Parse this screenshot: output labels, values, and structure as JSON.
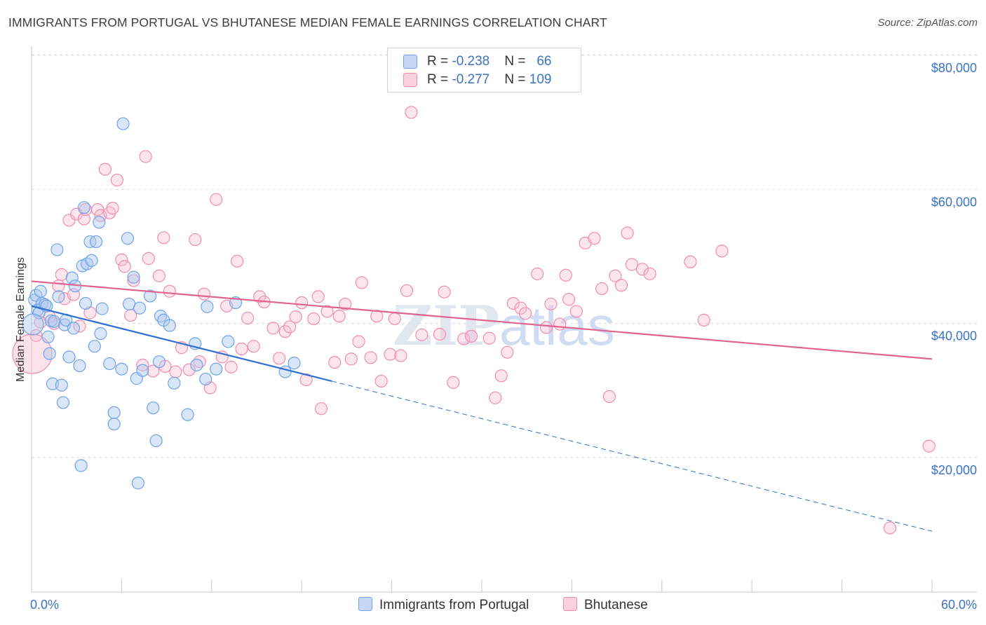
{
  "title": "IMMIGRANTS FROM PORTUGAL VS BHUTANESE MEDIAN FEMALE EARNINGS CORRELATION CHART",
  "source": "Source: ZipAtlas.com",
  "watermark": {
    "zip": "ZIP",
    "atlas": "atlas"
  },
  "legend": {
    "series1": {
      "r_label": "R = ",
      "r_value": "-0.238",
      "n_label": "N = ",
      "n_value": "66",
      "color": "#6fa3e8"
    },
    "series2": {
      "r_label": "R = ",
      "r_value": "-0.277",
      "n_label": "N = ",
      "n_value": "109",
      "color": "#f08cb0"
    }
  },
  "bottom_legend": {
    "series1": "Immigrants from Portugal",
    "series2": "Bhutanese"
  },
  "chart_data": {
    "type": "scatter",
    "xlabel": "",
    "ylabel": "Median Female Earnings",
    "xlim": [
      0,
      60
    ],
    "ylim": [
      0,
      84000
    ],
    "x_tick_labels": [
      "0.0%",
      "60.0%"
    ],
    "y_tick_labels": [
      "$20,000",
      "$40,000",
      "$60,000",
      "$80,000"
    ],
    "y_ticks": [
      20000,
      40000,
      60000,
      80000
    ],
    "grid": true,
    "series": [
      {
        "name": "Immigrants from Portugal",
        "color": "#6fa3e8",
        "trend": {
          "x_start": 0,
          "y_start": 42600,
          "x_solid_end": 20,
          "x_end": 60,
          "y_end": 9000
        },
        "points": [
          [
            0.2,
            43500
          ],
          [
            0.3,
            44200
          ],
          [
            0.4,
            42000
          ],
          [
            0.5,
            41600
          ],
          [
            0.6,
            44800
          ],
          [
            0.7,
            43000
          ],
          [
            0.9,
            42800
          ],
          [
            1.0,
            42600
          ],
          [
            1.1,
            38000
          ],
          [
            1.2,
            35500
          ],
          [
            1.3,
            40400
          ],
          [
            1.4,
            31000
          ],
          [
            1.5,
            40300
          ],
          [
            1.7,
            51000
          ],
          [
            1.8,
            44000
          ],
          [
            2.0,
            30800
          ],
          [
            2.1,
            28200
          ],
          [
            2.2,
            39800
          ],
          [
            2.3,
            40500
          ],
          [
            2.5,
            35000
          ],
          [
            2.7,
            46800
          ],
          [
            2.8,
            39300
          ],
          [
            2.9,
            45600
          ],
          [
            3.2,
            33700
          ],
          [
            3.3,
            18800
          ],
          [
            3.4,
            48600
          ],
          [
            3.5,
            57300
          ],
          [
            3.6,
            43000
          ],
          [
            3.7,
            48900
          ],
          [
            3.9,
            52200
          ],
          [
            4.0,
            49400
          ],
          [
            4.2,
            36600
          ],
          [
            4.3,
            52200
          ],
          [
            4.5,
            55100
          ],
          [
            4.6,
            38500
          ],
          [
            4.7,
            42200
          ],
          [
            5.2,
            34000
          ],
          [
            5.5,
            26700
          ],
          [
            5.5,
            25000
          ],
          [
            6.0,
            33200
          ],
          [
            6.1,
            69800
          ],
          [
            6.4,
            52700
          ],
          [
            6.5,
            42900
          ],
          [
            6.8,
            46900
          ],
          [
            7.0,
            31800
          ],
          [
            7.1,
            16200
          ],
          [
            7.2,
            42300
          ],
          [
            7.4,
            33000
          ],
          [
            7.9,
            44100
          ],
          [
            8.1,
            27400
          ],
          [
            8.3,
            22500
          ],
          [
            8.5,
            34300
          ],
          [
            8.6,
            41100
          ],
          [
            8.8,
            40500
          ],
          [
            9.2,
            39700
          ],
          [
            9.5,
            31100
          ],
          [
            10.4,
            26400
          ],
          [
            10.9,
            37000
          ],
          [
            11.0,
            33800
          ],
          [
            11.6,
            31700
          ],
          [
            11.7,
            42500
          ],
          [
            12.3,
            33200
          ],
          [
            13.1,
            37300
          ],
          [
            13.6,
            43100
          ],
          [
            16.9,
            32800
          ],
          [
            17.5,
            34100
          ]
        ]
      },
      {
        "name": "Bhutanese",
        "color": "#f08cb0",
        "trend": {
          "x_start": 0,
          "y_start": 46300,
          "x_end": 60,
          "y_end": 34700
        },
        "points": [
          [
            0.3,
            38200
          ],
          [
            0.6,
            40200
          ],
          [
            1.2,
            41000
          ],
          [
            1.5,
            40000
          ],
          [
            1.8,
            45600
          ],
          [
            2.0,
            47300
          ],
          [
            2.2,
            43700
          ],
          [
            2.5,
            55400
          ],
          [
            2.8,
            44300
          ],
          [
            3.0,
            56300
          ],
          [
            3.2,
            39600
          ],
          [
            3.5,
            55600
          ],
          [
            3.6,
            57000
          ],
          [
            3.9,
            41600
          ],
          [
            4.4,
            57000
          ],
          [
            4.6,
            56100
          ],
          [
            4.9,
            63000
          ],
          [
            5.2,
            56500
          ],
          [
            5.4,
            57200
          ],
          [
            5.7,
            61400
          ],
          [
            6.0,
            49500
          ],
          [
            6.2,
            48500
          ],
          [
            6.6,
            41200
          ],
          [
            6.8,
            46400
          ],
          [
            7.4,
            33800
          ],
          [
            7.6,
            64900
          ],
          [
            7.8,
            49700
          ],
          [
            8.1,
            32900
          ],
          [
            8.5,
            47100
          ],
          [
            8.8,
            52800
          ],
          [
            8.9,
            33600
          ],
          [
            9.2,
            44800
          ],
          [
            9.6,
            32800
          ],
          [
            10.0,
            36400
          ],
          [
            10.5,
            33100
          ],
          [
            10.9,
            52500
          ],
          [
            11.2,
            34300
          ],
          [
            11.5,
            44400
          ],
          [
            11.9,
            30400
          ],
          [
            12.3,
            58500
          ],
          [
            12.7,
            35000
          ],
          [
            13.0,
            42600
          ],
          [
            13.3,
            33500
          ],
          [
            13.7,
            49300
          ],
          [
            14.0,
            36200
          ],
          [
            14.4,
            40800
          ],
          [
            14.8,
            36600
          ],
          [
            15.2,
            44000
          ],
          [
            15.5,
            43200
          ],
          [
            16.1,
            39300
          ],
          [
            16.5,
            34800
          ],
          [
            16.9,
            38800
          ],
          [
            17.2,
            39500
          ],
          [
            17.6,
            41000
          ],
          [
            18.0,
            43100
          ],
          [
            18.3,
            31600
          ],
          [
            18.8,
            40700
          ],
          [
            19.1,
            44000
          ],
          [
            19.3,
            27300
          ],
          [
            19.7,
            41800
          ],
          [
            20.2,
            34200
          ],
          [
            20.5,
            41100
          ],
          [
            20.9,
            42900
          ],
          [
            21.3,
            34700
          ],
          [
            21.8,
            37300
          ],
          [
            22.0,
            46100
          ],
          [
            22.6,
            34900
          ],
          [
            23.0,
            41100
          ],
          [
            23.3,
            31400
          ],
          [
            23.9,
            35400
          ],
          [
            24.2,
            40700
          ],
          [
            24.6,
            35200
          ],
          [
            25.0,
            44900
          ],
          [
            25.3,
            71500
          ],
          [
            26.0,
            38300
          ],
          [
            27.2,
            38400
          ],
          [
            27.5,
            44700
          ],
          [
            28.1,
            31200
          ],
          [
            28.8,
            37700
          ],
          [
            29.3,
            38100
          ],
          [
            30.5,
            37800
          ],
          [
            30.9,
            28900
          ],
          [
            31.3,
            32200
          ],
          [
            31.7,
            35700
          ],
          [
            32.1,
            43000
          ],
          [
            32.6,
            42300
          ],
          [
            32.9,
            41500
          ],
          [
            33.7,
            47400
          ],
          [
            34.3,
            39400
          ],
          [
            34.6,
            42900
          ],
          [
            35.2,
            39900
          ],
          [
            35.6,
            47200
          ],
          [
            35.8,
            43600
          ],
          [
            36.3,
            41800
          ],
          [
            36.9,
            52000
          ],
          [
            37.5,
            52700
          ],
          [
            38.0,
            45200
          ],
          [
            38.5,
            29100
          ],
          [
            38.9,
            47100
          ],
          [
            39.3,
            45700
          ],
          [
            39.7,
            53500
          ],
          [
            40.0,
            48800
          ],
          [
            40.7,
            48100
          ],
          [
            41.2,
            47400
          ],
          [
            43.9,
            49200
          ],
          [
            44.8,
            40500
          ],
          [
            46.0,
            50800
          ],
          [
            57.2,
            9500
          ],
          [
            59.8,
            21700
          ]
        ]
      }
    ]
  }
}
